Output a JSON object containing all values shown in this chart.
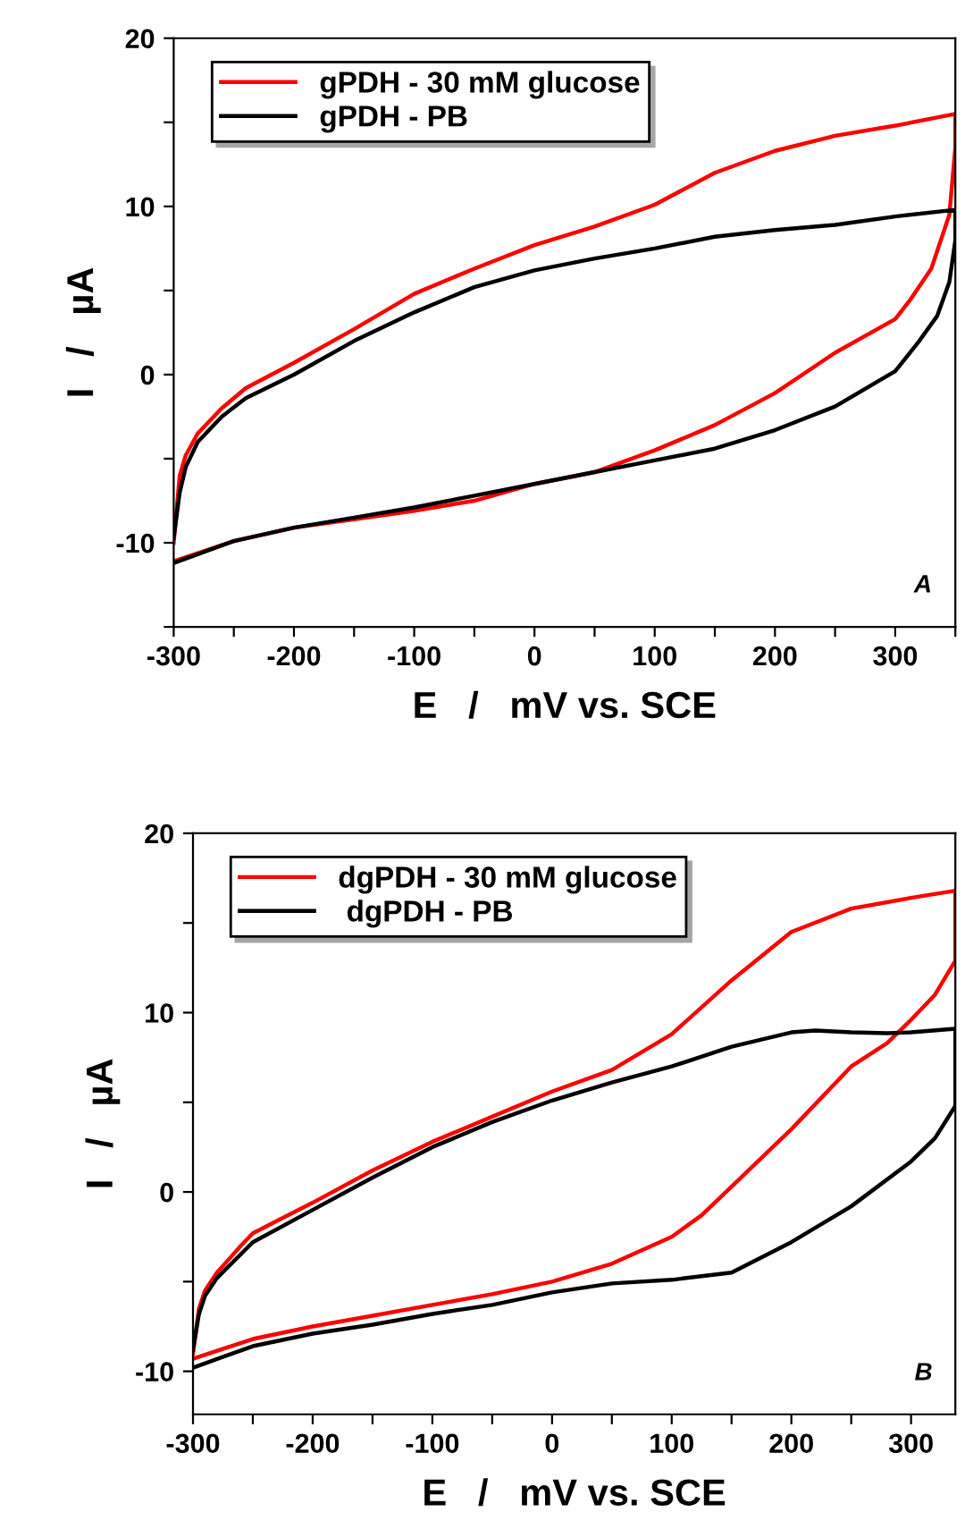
{
  "chart_data": [
    {
      "type": "line",
      "xlabel": "E   /   mV vs. SCE",
      "ylabel": "I   /   µA",
      "annotations": [
        "A"
      ],
      "legend": "top left",
      "grid": false,
      "xlim": [
        -300,
        350
      ],
      "ylim": [
        -15,
        20
      ],
      "xticks": [
        -300,
        {
          "value": -250,
          "label": null
        },
        -200,
        {
          "value": -150,
          "label": null
        },
        -100,
        {
          "value": -50,
          "label": null
        },
        0,
        {
          "value": 50,
          "label": null
        },
        100,
        {
          "value": 150,
          "label": null
        },
        200,
        {
          "value": 250,
          "label": null
        },
        300,
        {
          "value": 350,
          "label": null
        }
      ],
      "yticks": [
        {
          "value": -15,
          "label": null
        },
        -10,
        {
          "value": -5,
          "label": null
        },
        0,
        {
          "value": 5,
          "label": null
        },
        10,
        {
          "value": 15,
          "label": null
        },
        20
      ],
      "series": [
        {
          "name": "gPDH - 30 mM glucose",
          "color": "#ff0000",
          "x": [
            -300,
            -295,
            -290,
            -280,
            -260,
            -240,
            -200,
            -150,
            -100,
            -50,
            0,
            50,
            100,
            150,
            200,
            250,
            300,
            350,
            350,
            345,
            330,
            312,
            300,
            250,
            200,
            150,
            100,
            50,
            0,
            -50,
            -100,
            -150,
            -200,
            -250,
            -300
          ],
          "values": [
            -10,
            -6,
            -4.8,
            -3.5,
            -2,
            -0.8,
            0.7,
            2.7,
            4.8,
            6.3,
            7.7,
            8.8,
            10.1,
            12,
            13.3,
            14.2,
            14.8,
            15.5,
            13.5,
            9.5,
            6.3,
            4.4,
            3.3,
            1.3,
            -1.1,
            -3,
            -4.5,
            -5.8,
            -6.5,
            -7.5,
            -8.1,
            -8.6,
            -9.1,
            -9.9,
            -11.1
          ]
        },
        {
          "name": "gPDH - PB",
          "color": "#000000",
          "x": [
            -300,
            -295,
            -290,
            -280,
            -260,
            -240,
            -200,
            -150,
            -100,
            -50,
            0,
            50,
            100,
            150,
            200,
            250,
            300,
            350,
            350,
            345,
            335,
            320,
            300,
            250,
            200,
            150,
            100,
            50,
            0,
            -50,
            -100,
            -150,
            -200,
            -250,
            -300
          ],
          "values": [
            -9.7,
            -7,
            -5.5,
            -4,
            -2.5,
            -1.4,
            0,
            2,
            3.7,
            5.2,
            6.2,
            6.9,
            7.5,
            8.2,
            8.6,
            8.9,
            9.4,
            9.8,
            8,
            5.5,
            3.5,
            2,
            0.2,
            -1.9,
            -3.3,
            -4.4,
            -5.1,
            -5.8,
            -6.5,
            -7.2,
            -7.9,
            -8.5,
            -9.1,
            -9.9,
            -11.2
          ]
        }
      ]
    },
    {
      "type": "line",
      "xlabel": "E   /   mV vs. SCE",
      "ylabel": "I   /   µA",
      "annotations": [
        "B"
      ],
      "legend": "top left",
      "grid": false,
      "xlim": [
        -300,
        337
      ],
      "ylim": [
        -12.4,
        20
      ],
      "xticks": [
        -300,
        {
          "value": -250,
          "label": null
        },
        -200,
        {
          "value": -150,
          "label": null
        },
        -100,
        {
          "value": -50,
          "label": null
        },
        0,
        {
          "value": 50,
          "label": null
        },
        100,
        {
          "value": 150,
          "label": null
        },
        200,
        {
          "value": 250,
          "label": null
        },
        300
      ],
      "yticks": [
        -10,
        {
          "value": -5,
          "label": null
        },
        0,
        {
          "value": 5,
          "label": null
        },
        10,
        {
          "value": 15,
          "label": null
        },
        20
      ],
      "series": [
        {
          "name": "dgPDH - 30 mM glucose",
          "color": "#ff0000",
          "x": [
            -300,
            -295,
            -290,
            -280,
            -260,
            -250,
            -200,
            -150,
            -100,
            -50,
            0,
            50,
            100,
            150,
            200,
            250,
            300,
            337,
            337,
            320,
            300,
            280,
            250,
            200,
            150,
            125,
            100,
            50,
            0,
            -50,
            -100,
            -150,
            -200,
            -250,
            -300
          ],
          "values": [
            -9,
            -6.5,
            -5.5,
            -4.5,
            -3,
            -2.3,
            -0.6,
            1.2,
            2.8,
            4.2,
            5.6,
            6.8,
            8.8,
            11.8,
            14.5,
            15.8,
            16.4,
            16.8,
            12.9,
            11,
            9.6,
            8.3,
            7,
            3.5,
            0.3,
            -1.3,
            -2.5,
            -4,
            -5,
            -5.7,
            -6.3,
            -6.9,
            -7.5,
            -8.2,
            -9.3
          ]
        },
        {
          "name": " dgPDH - PB",
          "color": "#000000",
          "x": [
            -300,
            -295,
            -290,
            -280,
            -250,
            -200,
            -150,
            -100,
            -50,
            0,
            50,
            100,
            150,
            200,
            220,
            250,
            280,
            300,
            337,
            337,
            320,
            300,
            250,
            200,
            150,
            100,
            50,
            0,
            -50,
            -100,
            -150,
            -200,
            -250,
            -300
          ],
          "values": [
            -8.8,
            -6.8,
            -5.8,
            -4.8,
            -2.8,
            -1,
            0.8,
            2.5,
            3.9,
            5.1,
            6.1,
            7,
            8.1,
            8.9,
            9,
            8.9,
            8.85,
            8.9,
            9.1,
            4.8,
            3,
            1.7,
            -0.8,
            -2.8,
            -4.5,
            -4.9,
            -5.1,
            -5.6,
            -6.3,
            -6.8,
            -7.4,
            -7.9,
            -8.6,
            -9.8
          ]
        }
      ]
    }
  ]
}
